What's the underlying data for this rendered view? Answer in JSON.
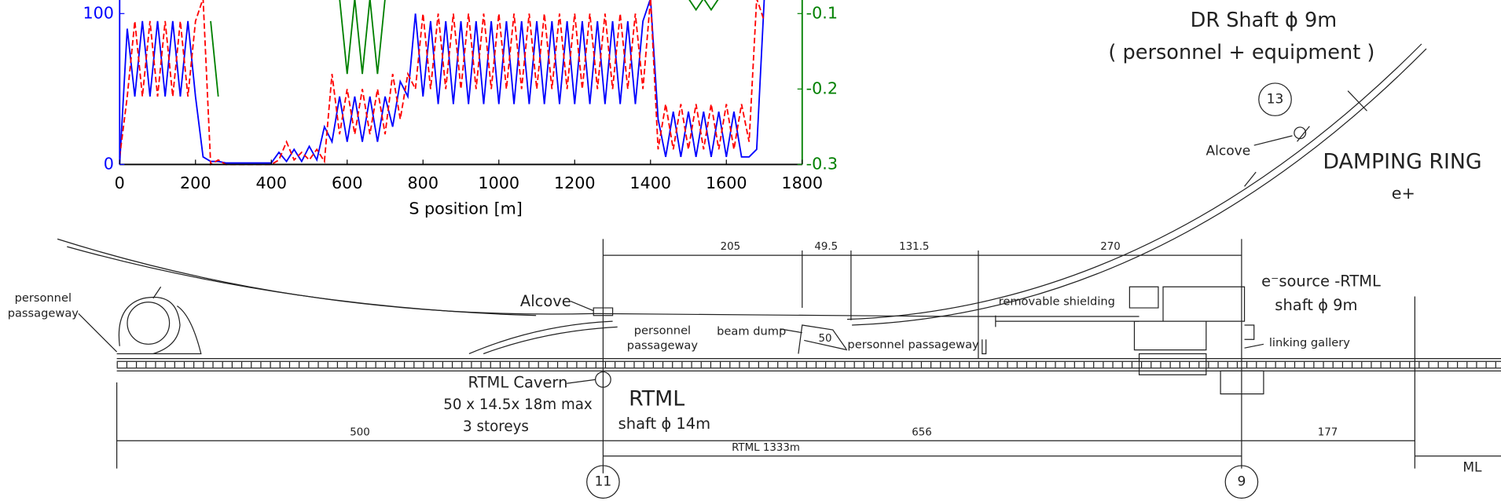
{
  "chart_data": {
    "type": "line",
    "x_label": "S position [m]",
    "xlim": [
      0,
      1800
    ],
    "xticks": [
      0,
      200,
      400,
      600,
      800,
      1000,
      1200,
      1400,
      1600,
      1800
    ],
    "ylim": [
      0,
      109
    ],
    "yticks": [
      0,
      100
    ],
    "y2lim": [
      -0.3,
      -0.082
    ],
    "y2ticks": [
      -0.1,
      -0.2,
      -0.3
    ],
    "x": [
      0,
      20,
      40,
      60,
      80,
      100,
      120,
      140,
      160,
      180,
      200,
      220,
      240,
      260,
      280,
      300,
      320,
      340,
      360,
      380,
      400,
      420,
      440,
      460,
      480,
      500,
      520,
      540,
      560,
      580,
      600,
      620,
      640,
      660,
      680,
      700,
      720,
      740,
      760,
      780,
      800,
      820,
      840,
      860,
      880,
      900,
      920,
      940,
      960,
      980,
      1000,
      1020,
      1040,
      1060,
      1080,
      1100,
      1120,
      1140,
      1160,
      1180,
      1200,
      1220,
      1240,
      1260,
      1280,
      1300,
      1320,
      1340,
      1360,
      1380,
      1400,
      1420,
      1440,
      1460,
      1480,
      1500,
      1520,
      1540,
      1560,
      1580,
      1600,
      1620,
      1640,
      1660,
      1680,
      1700
    ],
    "series": [
      {
        "color": "#0000ff",
        "dash": false,
        "values": [
          0,
          90,
          45,
          95,
          45,
          95,
          45,
          95,
          45,
          95,
          45,
          5,
          2,
          2,
          1,
          1,
          1,
          1,
          1,
          1,
          1,
          8,
          2,
          10,
          2,
          12,
          3,
          25,
          15,
          45,
          15,
          45,
          15,
          45,
          15,
          45,
          25,
          55,
          45,
          100,
          45,
          95,
          40,
          95,
          40,
          95,
          40,
          95,
          40,
          95,
          40,
          95,
          40,
          95,
          40,
          95,
          40,
          95,
          40,
          95,
          40,
          95,
          40,
          95,
          40,
          95,
          40,
          95,
          40,
          95,
          110,
          30,
          5,
          35,
          5,
          35,
          5,
          35,
          5,
          35,
          5,
          35,
          5,
          5,
          10,
          110
        ]
      },
      {
        "color": "#ff0000",
        "dash": true,
        "values": [
          5,
          45,
          95,
          45,
          95,
          45,
          95,
          45,
          95,
          45,
          95,
          110,
          0,
          3,
          0,
          0,
          0,
          0,
          0,
          0,
          0,
          3,
          15,
          3,
          8,
          3,
          10,
          2,
          60,
          20,
          50,
          20,
          50,
          20,
          50,
          20,
          60,
          30,
          60,
          50,
          100,
          50,
          100,
          50,
          100,
          50,
          100,
          50,
          100,
          50,
          100,
          50,
          100,
          50,
          100,
          50,
          100,
          50,
          100,
          50,
          100,
          50,
          100,
          50,
          100,
          50,
          100,
          50,
          100,
          50,
          110,
          10,
          40,
          10,
          40,
          10,
          40,
          10,
          40,
          10,
          40,
          10,
          40,
          15,
          110,
          95
        ]
      },
      {
        "color": "#008000",
        "dash": false,
        "axis": "y2",
        "values": [
          null,
          null,
          null,
          null,
          null,
          null,
          null,
          null,
          null,
          null,
          null,
          null,
          -0.11,
          -0.21,
          null,
          null,
          null,
          null,
          null,
          null,
          null,
          null,
          null,
          null,
          null,
          null,
          null,
          null,
          null,
          -0.08,
          -0.18,
          -0.08,
          -0.18,
          -0.08,
          -0.18,
          -0.08,
          null,
          null,
          null,
          null,
          null,
          null,
          null,
          null,
          null,
          null,
          null,
          null,
          null,
          null,
          null,
          null,
          null,
          null,
          null,
          null,
          null,
          null,
          null,
          null,
          null,
          null,
          null,
          null,
          null,
          null,
          null,
          null,
          null,
          null,
          null,
          null,
          null,
          null,
          null,
          -0.08,
          -0.095,
          -0.08,
          -0.095,
          -0.08,
          null,
          null,
          null,
          null,
          null,
          null
        ]
      }
    ]
  },
  "drawing": {
    "dr_shaft": "DR Shaft ϕ 9m",
    "dr_shaft_note": "( personnel + equipment )",
    "alcove_dr": "Alcove",
    "damping_ring": "DAMPING RING",
    "damping_ring_particle": "e+",
    "dims": [
      205,
      49.5,
      131.5,
      270
    ],
    "source_title": "e⁻source -RTML",
    "source_shaft": "shaft ϕ 9m",
    "removable_shielding": "removable  shielding",
    "left_passage": [
      "personnel",
      "passageway"
    ],
    "alcove_main": "Alcove",
    "mid_passage": [
      "personnel",
      "passageway"
    ],
    "beam_dump": "beam dump",
    "dump_dim": 50,
    "right_passage": "personnel passageway",
    "linking_gallery": "linking gallery",
    "cavern": [
      "RTML Cavern",
      "50 x 14.5x 18m max",
      "3 storeys"
    ],
    "rtml_title": "RTML",
    "rtml_shaft": "shaft ϕ 14m",
    "lower_dims": [
      500,
      656,
      177
    ],
    "rtml_length": "RTML  1333m",
    "markers": [
      13,
      11,
      9
    ],
    "ml": "ML"
  }
}
